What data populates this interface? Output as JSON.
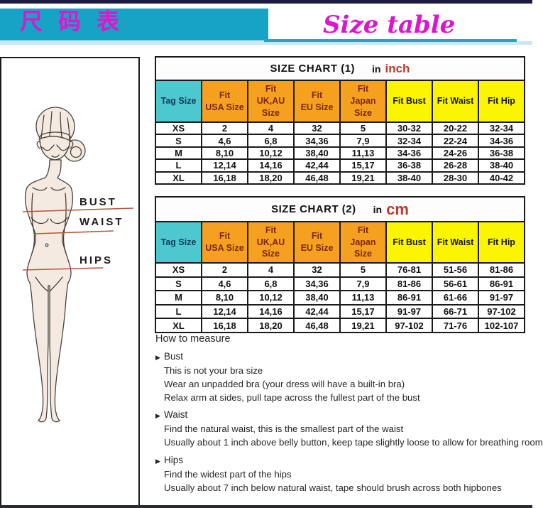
{
  "banner": {
    "title_cn": "尺码表",
    "title_en": "Size table",
    "cyan": "#16a3c6",
    "magenta": "#e214ce"
  },
  "figure": {
    "labels": [
      "BUST",
      "WAIST",
      "HIPS"
    ],
    "line_color": "#b55b3b",
    "skin_color": "#f4eae1"
  },
  "size_charts": [
    {
      "title": "SIZE CHART (1)",
      "unit_prefix": "in",
      "unit": "inch",
      "unit_color": "#c0392b",
      "columns": [
        "Tag Size",
        "Fit\nUSA Size",
        "Fit\nUK,AU\nSize",
        "Fit\nEU Size",
        "Fit\nJapan\nSize",
        "Fit Bust",
        "Fit Waist",
        "Fit Hip"
      ],
      "rows": [
        [
          "XS",
          "2",
          "4",
          "32",
          "5",
          "30-32",
          "20-22",
          "32-34"
        ],
        [
          "S",
          "4,6",
          "6,8",
          "34,36",
          "7,9",
          "32-34",
          "22-24",
          "34-36"
        ],
        [
          "M",
          "8,10",
          "10,12",
          "38,40",
          "11,13",
          "34-36",
          "24-26",
          "36-38"
        ],
        [
          "L",
          "12,14",
          "14,16",
          "42,44",
          "15,17",
          "36-38",
          "26-28",
          "38-40"
        ],
        [
          "XL",
          "16,18",
          "18,20",
          "46,48",
          "19,21",
          "38-40",
          "28-30",
          "40-42"
        ]
      ],
      "header_colors": {
        "tag": "#4cc8ce",
        "fit": "#f5a01f",
        "measure": "#fbf500"
      }
    },
    {
      "title": "SIZE CHART (2)",
      "unit_prefix": "in",
      "unit": "cm",
      "unit_color": "#c0392b",
      "columns": [
        "Tag Size",
        "Fit\nUSA Size",
        "Fit\nUK,AU\nSize",
        "Fit\nEU Size",
        "Fit\nJapan\nSize",
        "Fit Bust",
        "Fit Waist",
        "Fit Hip"
      ],
      "rows": [
        [
          "XS",
          "2",
          "4",
          "32",
          "5",
          "76-81",
          "51-56",
          "81-86"
        ],
        [
          "S",
          "4,6",
          "6,8",
          "34,36",
          "7,9",
          "81-86",
          "56-61",
          "86-91"
        ],
        [
          "M",
          "8,10",
          "10,12",
          "38,40",
          "11,13",
          "86-91",
          "61-66",
          "91-97"
        ],
        [
          "L",
          "12,14",
          "14,16",
          "42,44",
          "15,17",
          "91-97",
          "66-71",
          "97-102"
        ],
        [
          "XL",
          "16,18",
          "18,20",
          "46,48",
          "19,21",
          "97-102",
          "71-76",
          "102-107"
        ]
      ],
      "header_colors": {
        "tag": "#4cc8ce",
        "fit": "#f5a01f",
        "measure": "#fbf500"
      }
    }
  ],
  "how_to_measure": {
    "title": "How to measure",
    "bullet_char": "▶",
    "sections": [
      {
        "name": "Bust",
        "lines": [
          "This is not your bra size",
          "Wear an unpadded bra (your dress will have a built-in bra)",
          "Relax arm at sides, pull tape across the fullest part of the bust"
        ]
      },
      {
        "name": "Waist",
        "lines": [
          "Find the natural waist, this is the smallest part of the waist",
          "Usually about 1 inch above belly button, keep tape slightly loose to allow for breathing room"
        ]
      },
      {
        "name": "Hips",
        "lines": [
          "Find the widest part of the hips",
          "Usually about 7 inch below natural waist, tape should brush across both hipbones"
        ]
      }
    ]
  }
}
